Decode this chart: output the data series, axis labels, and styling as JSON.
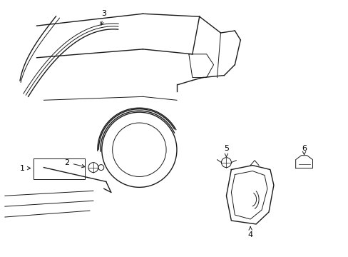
{
  "bg_color": "#ffffff",
  "line_color": "#1a1a1a",
  "lw": 1.0,
  "tlw": 0.7,
  "fs": 8,
  "fig_width": 4.89,
  "fig_height": 3.6,
  "dpi": 100
}
